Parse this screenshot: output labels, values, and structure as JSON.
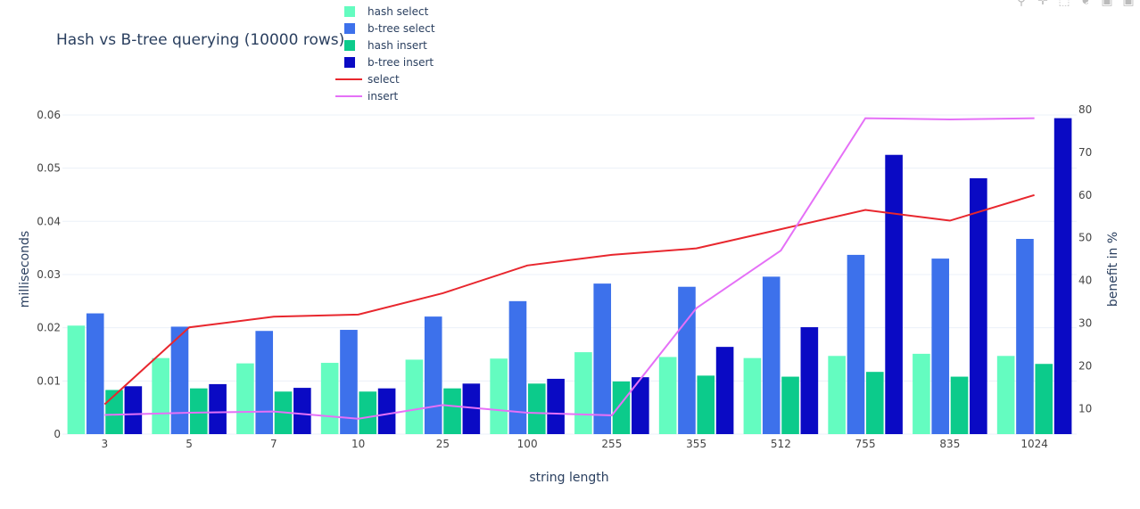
{
  "chart_data": {
    "type": "bar",
    "title": "Hash vs B-tree querying (10000 rows)",
    "xlabel": "string length",
    "ylabel": "milliseconds",
    "y2label": "benefit in %",
    "categories": [
      "3",
      "5",
      "7",
      "10",
      "25",
      "100",
      "255",
      "355",
      "512",
      "755",
      "835",
      "1024"
    ],
    "ylim": [
      0,
      0.061
    ],
    "y2lim": [
      4,
      80
    ],
    "yticks": [
      0,
      0.01,
      0.02,
      0.03,
      0.04,
      0.05,
      0.06
    ],
    "ytick_labels": [
      "0",
      "0.01",
      "0.02",
      "0.03",
      "0.04",
      "0.05",
      "0.06"
    ],
    "y2ticks": [
      10,
      20,
      30,
      40,
      50,
      60,
      70,
      80
    ],
    "grid": true,
    "legend_position": "top",
    "series": [
      {
        "name": "hash select",
        "kind": "bar",
        "axis": "y",
        "color": "#64fcc0",
        "values": [
          0.0204,
          0.0143,
          0.0133,
          0.0134,
          0.014,
          0.0142,
          0.0154,
          0.0145,
          0.0143,
          0.0147,
          0.0151,
          0.0147
        ]
      },
      {
        "name": "b-tree select",
        "kind": "bar",
        "axis": "y",
        "color": "#3d71eb",
        "values": [
          0.0227,
          0.0202,
          0.0194,
          0.0196,
          0.0221,
          0.025,
          0.0283,
          0.0277,
          0.0296,
          0.0337,
          0.033,
          0.0367
        ]
      },
      {
        "name": "hash insert",
        "kind": "bar",
        "axis": "y",
        "color": "#0ccb8b",
        "values": [
          0.0083,
          0.0086,
          0.008,
          0.008,
          0.0086,
          0.0095,
          0.0099,
          0.011,
          0.0108,
          0.0117,
          0.0108,
          0.0132
        ]
      },
      {
        "name": "b-tree insert",
        "kind": "bar",
        "axis": "y",
        "color": "#0a0ac4",
        "values": [
          0.009,
          0.0094,
          0.0087,
          0.0086,
          0.0095,
          0.0104,
          0.0107,
          0.0164,
          0.0201,
          0.0525,
          0.0481,
          0.0594
        ]
      },
      {
        "name": "select",
        "kind": "line",
        "axis": "y2",
        "color": "#e8272e",
        "values": [
          11,
          29,
          31.5,
          32,
          37,
          43.5,
          46,
          47.5,
          52,
          56.5,
          54,
          60
        ]
      },
      {
        "name": "insert",
        "kind": "line",
        "axis": "y2",
        "color": "#e570f7",
        "values": [
          8.5,
          9,
          9.3,
          7.6,
          10.8,
          9,
          8.4,
          33.5,
          47,
          78,
          77.7,
          78
        ]
      }
    ]
  }
}
